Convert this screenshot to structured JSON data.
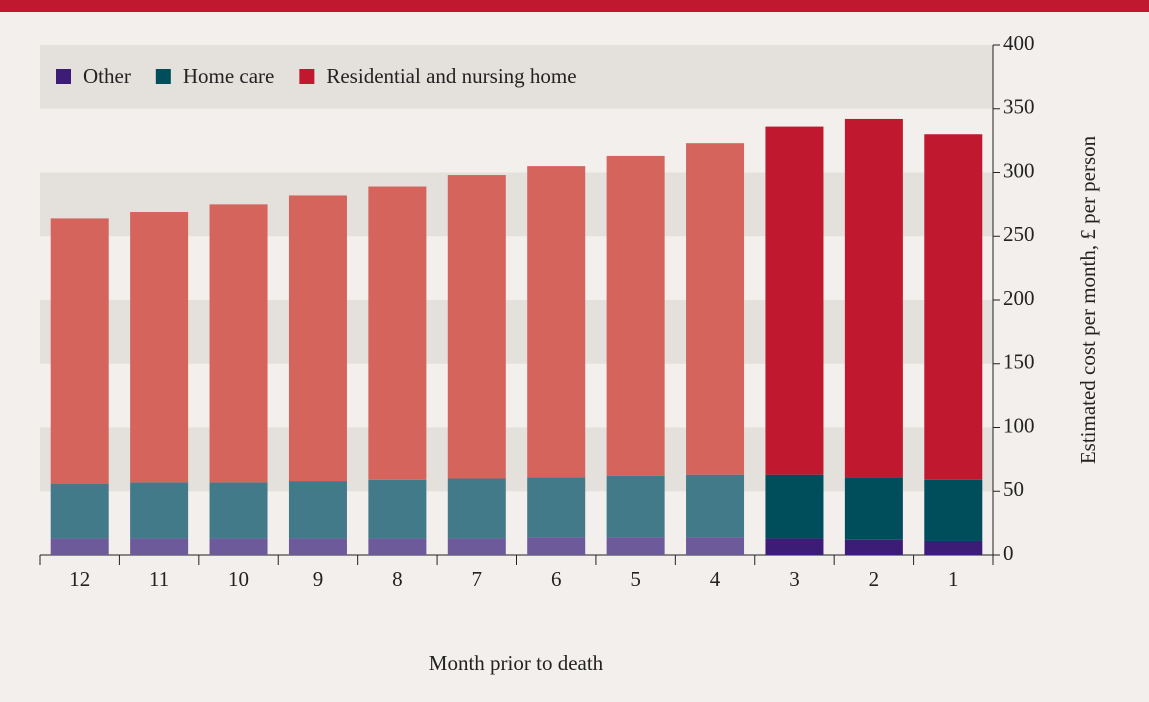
{
  "chart_data": {
    "type": "stacked_bar",
    "x_label": "Month prior to death",
    "y_label": "Estimated cost per month, £ per person",
    "categories": [
      "12",
      "11",
      "10",
      "9",
      "8",
      "7",
      "6",
      "5",
      "4",
      "3",
      "2",
      "1"
    ],
    "series": [
      {
        "name": "Other",
        "color": "#3d1c78",
        "colors": [
          "#6d5a9a",
          "#6d5a9a",
          "#6d5a9a",
          "#6d5a9a",
          "#6d5a9a",
          "#6d5a9a",
          "#6d5a9a",
          "#6d5a9a",
          "#6d5a9a",
          "#3d1c78",
          "#3d1c78",
          "#3d1c78"
        ],
        "values": [
          13,
          13,
          13,
          13,
          13,
          13,
          14,
          14,
          14,
          13,
          12,
          11
        ]
      },
      {
        "name": "Home care",
        "color": "#004e5c",
        "colors": [
          "#437a8a",
          "#437a8a",
          "#437a8a",
          "#437a8a",
          "#437a8a",
          "#437a8a",
          "#437a8a",
          "#437a8a",
          "#437a8a",
          "#004e5c",
          "#004e5c",
          "#004e5c"
        ],
        "values": [
          43,
          44,
          44,
          45,
          46,
          47,
          47,
          48,
          49,
          50,
          49,
          48
        ]
      },
      {
        "name": "Residential and nursing home",
        "color": "#c0182f",
        "colors": [
          "#d4645c",
          "#d4645c",
          "#d4645c",
          "#d4645c",
          "#d4645c",
          "#d4645c",
          "#d4645c",
          "#d4645c",
          "#d4645c",
          "#c0182f",
          "#c0182f",
          "#c0182f"
        ],
        "values": [
          208,
          212,
          218,
          224,
          230,
          238,
          244,
          251,
          260,
          273,
          281,
          271
        ]
      }
    ],
    "ylim": [
      0,
      400
    ],
    "yticks": [
      0,
      50,
      100,
      150,
      200,
      250,
      300,
      350,
      400
    ],
    "grid": "bands",
    "legend": "top-left"
  }
}
